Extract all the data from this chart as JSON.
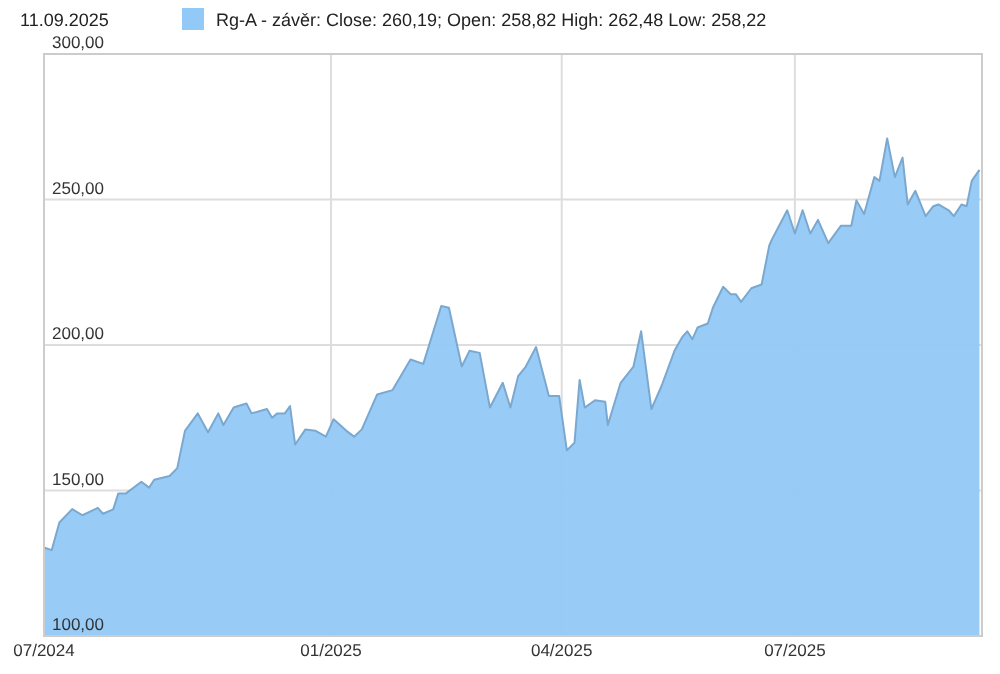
{
  "chart_data": {
    "type": "area",
    "annotations": [
      "11.09.2025"
    ],
    "x": [
      "2024-09-11",
      "2024-09-14",
      "2024-09-17",
      "2024-09-22",
      "2024-09-26",
      "2024-10-02",
      "2024-10-04",
      "2024-10-08",
      "2024-10-10",
      "2024-10-13",
      "2024-10-19",
      "2024-10-22",
      "2024-10-24",
      "2024-10-30",
      "2024-11-02",
      "2024-11-05",
      "2024-11-10",
      "2024-11-14",
      "2024-11-18",
      "2024-11-20",
      "2024-11-24",
      "2024-11-29",
      "2024-12-01",
      "2024-12-07",
      "2024-12-09",
      "2024-12-11",
      "2024-12-14",
      "2024-12-16",
      "2024-12-18",
      "2024-12-22",
      "2024-12-26",
      "2024-12-30",
      "2025-01-02",
      "2025-01-07",
      "2025-01-10",
      "2025-01-13",
      "2025-01-19",
      "2025-01-25",
      "2025-02-01",
      "2025-02-06",
      "2025-02-13",
      "2025-02-16",
      "2025-02-21",
      "2025-02-24",
      "2025-02-28",
      "2025-03-04",
      "2025-03-09",
      "2025-03-12",
      "2025-03-15",
      "2025-03-18",
      "2025-03-22",
      "2025-03-27",
      "2025-03-31",
      "2025-04-03",
      "2025-04-06",
      "2025-04-08",
      "2025-04-10",
      "2025-04-14",
      "2025-04-18",
      "2025-04-19",
      "2025-04-24",
      "2025-04-29",
      "2025-05-02",
      "2025-05-06",
      "2025-05-10",
      "2025-05-15",
      "2025-05-18",
      "2025-05-20",
      "2025-05-22",
      "2025-05-24",
      "2025-05-28",
      "2025-05-30",
      "2025-06-03",
      "2025-06-06",
      "2025-06-08",
      "2025-06-10",
      "2025-06-14",
      "2025-06-18",
      "2025-06-21",
      "2025-06-22",
      "2025-06-28",
      "2025-07-01",
      "2025-07-04",
      "2025-07-07",
      "2025-07-10",
      "2025-07-14",
      "2025-07-19",
      "2025-07-23",
      "2025-07-25",
      "2025-07-28",
      "2025-08-01",
      "2025-08-03",
      "2025-08-06",
      "2025-08-09",
      "2025-08-12",
      "2025-08-14",
      "2025-08-17",
      "2025-08-21",
      "2025-08-24",
      "2025-08-26",
      "2025-08-30",
      "2025-09-01",
      "2025-09-04",
      "2025-09-06",
      "2025-09-08",
      "2025-09-11"
    ],
    "series": [
      {
        "name": "Rg-A - závěr: Close: 260,19; Open: 258,82 High: 262,48 Low: 258,22",
        "color": "#92c9f7",
        "values": [
          130.4,
          129.5,
          139,
          143.6,
          141.5,
          144,
          142,
          143.5,
          149,
          149,
          153,
          151,
          153.7,
          155,
          157.7,
          170.5,
          176.5,
          170,
          176.5,
          172.5,
          178.5,
          179.9,
          176.5,
          178,
          175,
          176.5,
          176.5,
          179,
          165.8,
          171,
          170.5,
          168.5,
          174.5,
          170.5,
          168.5,
          171,
          183,
          184.5,
          195,
          193.5,
          213.4,
          212.8,
          192.6,
          198,
          197.3,
          178.5,
          187,
          178.5,
          189.3,
          192.6,
          199.3,
          182.5,
          182.5,
          163.8,
          166.4,
          188,
          178.5,
          181,
          180.5,
          172.5,
          187,
          192.6,
          204.7,
          178,
          186,
          198,
          202.7,
          204.7,
          202,
          206,
          207.4,
          212.8,
          220,
          217.4,
          217.4,
          214.8,
          219.5,
          220.8,
          234.2,
          236.2,
          246.3,
          238.3,
          246.3,
          238.3,
          243,
          235,
          241,
          241,
          249.7,
          245,
          257.7,
          256.4,
          271,
          257.7,
          264.4,
          248.3,
          253,
          244.3,
          247.7,
          248.3,
          246.3,
          244.3,
          248.3,
          247.7,
          256.4,
          260.2
        ]
      }
    ],
    "xlim": [
      "2024-09-11",
      "2025-09-12"
    ],
    "xticks": [
      {
        "value": "2024-09-11",
        "label": "07/2024"
      },
      {
        "value": "2025-01-01",
        "label": "01/2025"
      },
      {
        "value": "2025-04-01",
        "label": "04/2025"
      },
      {
        "value": "2025-07-01",
        "label": "07/2025"
      }
    ],
    "ylim": [
      100,
      300
    ],
    "yticks": [
      {
        "value": 100,
        "label": "100,00"
      },
      {
        "value": 150,
        "label": "150,00"
      },
      {
        "value": 200,
        "label": "200,00"
      },
      {
        "value": 250,
        "label": "250,00"
      },
      {
        "value": 300,
        "label": "300,00"
      }
    ],
    "grid": true,
    "legend": "top"
  }
}
